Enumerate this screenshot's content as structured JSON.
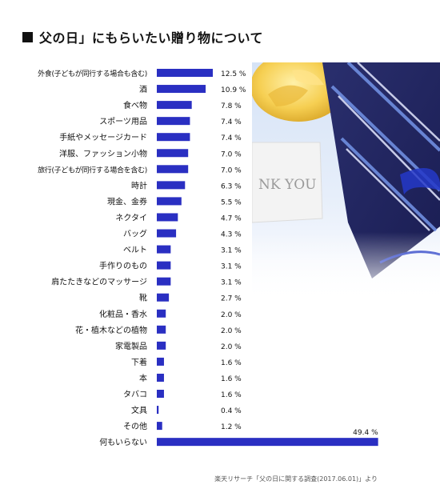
{
  "title": "父の日」にもらいたい贈り物について",
  "source": "楽天リサーチ「父の日に関する調査(2017.06.01)」より",
  "photo": {
    "card_text": "NK YOU"
  },
  "colors": {
    "bar": "#2a2fc2",
    "text": "#111111"
  },
  "chart_data": {
    "type": "bar",
    "orientation": "horizontal",
    "unit": "%",
    "xlim": [
      0,
      50
    ],
    "grid": false,
    "categories": [
      "外食(子どもが同行する場合も含む)",
      "酒",
      "食べ物",
      "スポーツ用品",
      "手紙やメッセージカード",
      "洋服、ファッション小物",
      "旅行(子どもが同行する場合を含む)",
      "時計",
      "現金、金券",
      "ネクタイ",
      "バッグ",
      "ベルト",
      "手作りのもの",
      "肩たたきなどのマッサージ",
      "靴",
      "化粧品・香水",
      "花・植木などの植物",
      "家電製品",
      "下着",
      "本",
      "タバコ",
      "文具",
      "その他",
      "何もいらない"
    ],
    "values": [
      12.5,
      10.9,
      7.8,
      7.4,
      7.4,
      7.0,
      7.0,
      6.3,
      5.5,
      4.7,
      4.3,
      3.1,
      3.1,
      3.1,
      2.7,
      2.0,
      2.0,
      2.0,
      1.6,
      1.6,
      1.6,
      0.4,
      1.2,
      49.4
    ],
    "value_labels": [
      "12.5 %",
      "10.9 %",
      "7.8 %",
      "7.4 %",
      "7.4 %",
      "7.0 %",
      "7.0 %",
      "6.3 %",
      "5.5 %",
      "4.7 %",
      "4.3 %",
      "3.1 %",
      "3.1 %",
      "3.1 %",
      "2.7 %",
      "2.0 %",
      "2.0 %",
      "2.0 %",
      "1.6 %",
      "1.6 %",
      "1.6 %",
      "0.4 %",
      "1.2 %",
      "49.4 %"
    ]
  }
}
